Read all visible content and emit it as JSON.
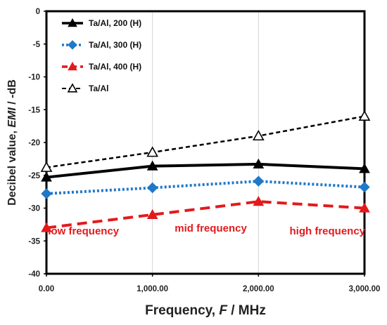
{
  "chart_data": {
    "type": "line",
    "title": "",
    "xlabel": "Frequency, F / MHz",
    "xlabel_parts": {
      "prefix": "Frequency, ",
      "var": "F",
      "suffix": " / MHz"
    },
    "ylabel": "Decibel value, EMI / -dB",
    "ylabel_parts": {
      "prefix": "Decibel value, ",
      "var": "EMI",
      "suffix": " / -dB"
    },
    "xlim": [
      0,
      3000
    ],
    "ylim": [
      -40,
      0
    ],
    "x_ticks": [
      "0.00",
      "1,000.00",
      "2,000.00",
      "3,000.00"
    ],
    "x_tick_values": [
      0,
      1000,
      2000,
      3000
    ],
    "y_ticks": [
      "0",
      "-5",
      "-10",
      "-15",
      "-20",
      "-25",
      "-30",
      "-35",
      "-40"
    ],
    "y_tick_values": [
      0,
      -5,
      -10,
      -15,
      -20,
      -25,
      -30,
      -35,
      -40
    ],
    "grid": "vertical",
    "legend_position": "top-left",
    "series": [
      {
        "name": "Ta/Al, 200 (H)",
        "color": "#000000",
        "marker": "filled-triangle",
        "line": "solid",
        "x": [
          0,
          1000,
          2000,
          3000
        ],
        "values": [
          -25.3,
          -23.6,
          -23.3,
          -24.0
        ]
      },
      {
        "name": "Ta/Al, 300 (H)",
        "color": "#1f78c8",
        "marker": "diamond",
        "line": "dotted",
        "x": [
          0,
          1000,
          2000,
          3000
        ],
        "values": [
          -27.8,
          -26.9,
          -25.9,
          -26.8
        ]
      },
      {
        "name": "Ta/Al, 400 (H)",
        "color": "#e31a1c",
        "marker": "filled-triangle",
        "line": "dashed",
        "x": [
          0,
          1000,
          2000,
          3000
        ],
        "values": [
          -33.0,
          -31.0,
          -29.0,
          -30.0
        ]
      },
      {
        "name": "Ta/Al",
        "color": "#000000",
        "marker": "hollow-triangle",
        "line": "dashed",
        "x": [
          0,
          1000,
          2000,
          3000
        ],
        "values": [
          -23.8,
          -21.5,
          -19.0,
          -16.0
        ]
      }
    ],
    "annotations": [
      {
        "text": "low frequency",
        "x": 350,
        "y": -34.0
      },
      {
        "text": "mid frequency",
        "x": 1550,
        "y": -33.6
      },
      {
        "text": "high frequency",
        "x": 2650,
        "y": -34.0
      }
    ]
  }
}
